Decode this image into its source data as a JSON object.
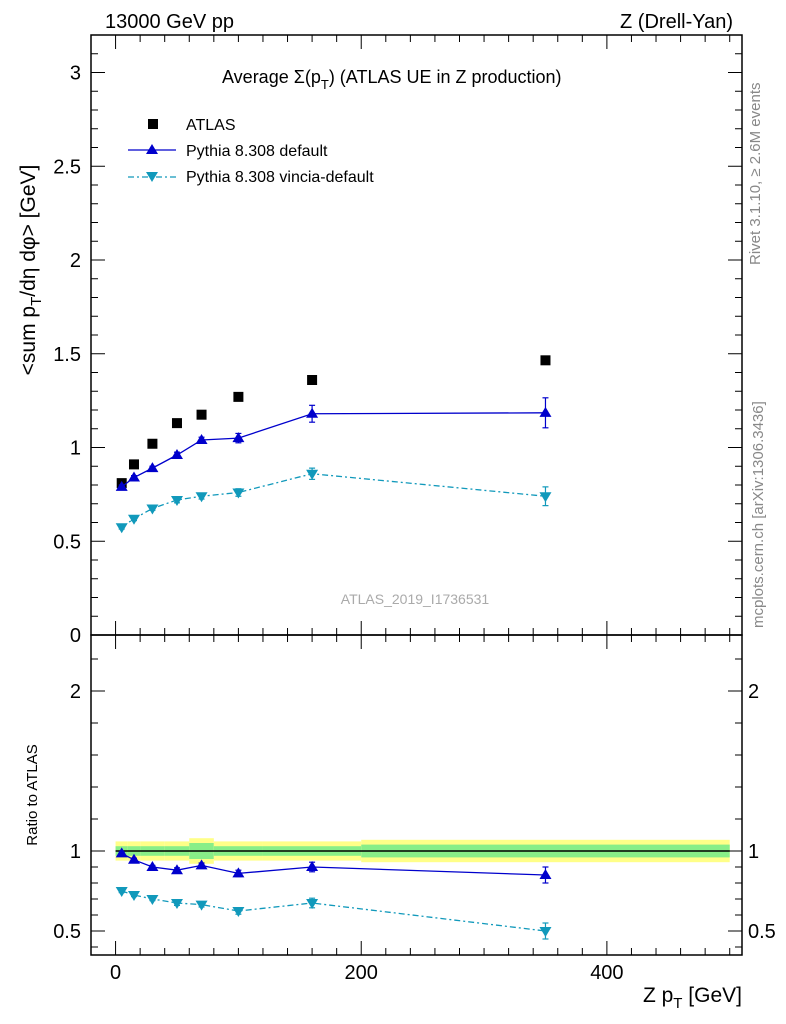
{
  "header": {
    "left": "13000 GeV pp",
    "right": "Z (Drell-Yan)"
  },
  "side_labels": {
    "rivet": "Rivet 3.1.10, ≥ 2.6M events",
    "mcplots": "mcplots.cern.ch [arXiv:1306.3436]"
  },
  "watermark": "ATLAS_2019_I1736531",
  "colors": {
    "atlas": "#000000",
    "pythia_default": "#0000cc",
    "pythia_vincia": "#1199bb",
    "band_outer": "#ffff88",
    "band_inner": "#88ee88"
  },
  "chart_data": [
    {
      "type": "scatter",
      "title": "Average Σ(pT) (ATLAS UE in Z production)",
      "title_parts": {
        "prefix": "Average ",
        "sigma": "Σ(p",
        "sub": "T",
        "suffix": ") (ATLAS UE in Z production)"
      },
      "ylabel": "<sum pT/dη dφ> [GeV]",
      "ylabel_parts": {
        "a": "<sum p",
        "sub": "T",
        "b": "/dη dφ> [GeV]"
      },
      "xlim": [
        -20,
        510
      ],
      "ylim": [
        0,
        3.2
      ],
      "yticks": [
        0,
        0.5,
        1,
        1.5,
        2,
        2.5,
        3
      ],
      "ytick_labels": [
        "0",
        "0.5",
        "1",
        "1.5",
        "2",
        "2.5",
        "3"
      ],
      "legend_position": "top-left",
      "x": [
        5,
        15,
        30,
        50,
        70,
        100,
        160,
        350
      ],
      "series": [
        {
          "name": "ATLAS",
          "marker": "square",
          "values": [
            0.81,
            0.91,
            1.02,
            1.13,
            1.175,
            1.27,
            1.36,
            1.465
          ],
          "errors": [
            0.01,
            0.01,
            0.01,
            0.01,
            0.01,
            0.01,
            0.01,
            0.01
          ]
        },
        {
          "name": "Pythia 8.308 default",
          "marker": "triangle-up",
          "line": "solid",
          "values": [
            0.79,
            0.84,
            0.89,
            0.96,
            1.04,
            1.05,
            1.18,
            1.185
          ],
          "errors": [
            0.01,
            0.01,
            0.01,
            0.015,
            0.015,
            0.025,
            0.045,
            0.08
          ]
        },
        {
          "name": "Pythia 8.308 vincia-default",
          "marker": "triangle-down",
          "line": "dashdot",
          "values": [
            0.575,
            0.62,
            0.675,
            0.72,
            0.74,
            0.76,
            0.86,
            0.74
          ],
          "errors": [
            0.01,
            0.01,
            0.01,
            0.015,
            0.015,
            0.02,
            0.03,
            0.05
          ]
        }
      ]
    },
    {
      "type": "scatter",
      "ylabel": "Ratio to ATLAS",
      "xlabel": "Z pT [GeV]",
      "xlabel_parts": {
        "a": "Z p",
        "sub": "T",
        "b": " [GeV]"
      },
      "xlim": [
        -20,
        510
      ],
      "ylim": [
        0.35,
        2.35
      ],
      "yticks": [
        0.5,
        1,
        2
      ],
      "ytick_labels": [
        "0.5",
        "1",
        "2"
      ],
      "xticks": [
        0,
        200,
        400
      ],
      "xtick_labels": [
        "0",
        "200",
        "400"
      ],
      "x": [
        5,
        15,
        30,
        50,
        70,
        100,
        160,
        350
      ],
      "band": {
        "edges": [
          0,
          10,
          20,
          40,
          60,
          80,
          120,
          200,
          500
        ],
        "outer": [
          0.06,
          0.06,
          0.06,
          0.06,
          0.08,
          0.06,
          0.06,
          0.07
        ],
        "inner": [
          0.03,
          0.03,
          0.03,
          0.03,
          0.05,
          0.03,
          0.03,
          0.04
        ]
      },
      "series": [
        {
          "name": "Pythia 8.308 default",
          "marker": "triangle-up",
          "line": "solid",
          "values": [
            0.985,
            0.945,
            0.9,
            0.88,
            0.91,
            0.86,
            0.9,
            0.85
          ],
          "errors": [
            0.01,
            0.01,
            0.01,
            0.015,
            0.015,
            0.02,
            0.03,
            0.05
          ]
        },
        {
          "name": "Pythia 8.308 vincia-default",
          "marker": "triangle-down",
          "line": "dashdot",
          "values": [
            0.75,
            0.725,
            0.7,
            0.675,
            0.665,
            0.625,
            0.675,
            0.5
          ],
          "errors": [
            0.01,
            0.01,
            0.01,
            0.015,
            0.015,
            0.02,
            0.03,
            0.05
          ]
        }
      ]
    }
  ]
}
